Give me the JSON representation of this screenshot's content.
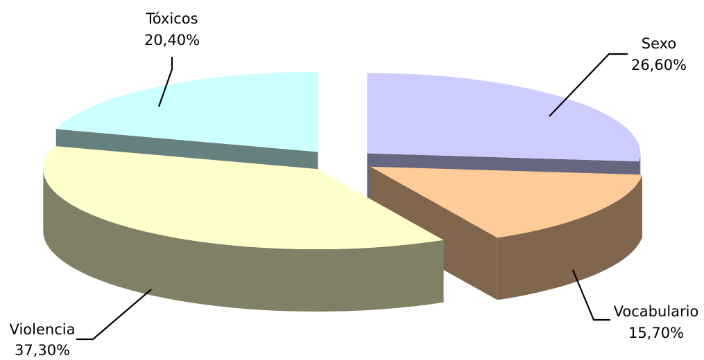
{
  "chart_data": {
    "type": "pie",
    "title": "",
    "style": "3d-exploded",
    "series": [
      {
        "slices": [
          {
            "label": "Sexo",
            "value_label": "26,60%",
            "value": 26.6,
            "color": "#CCCCFF",
            "side_color": "#666680"
          },
          {
            "label": "Vocabulario",
            "value_label": "15,70%",
            "value": 15.7,
            "color": "#FFCC99",
            "side_color": "#80664D"
          },
          {
            "label": "Violencia",
            "value_label": "37,30%",
            "value": 37.3,
            "color": "#FFFFCC",
            "side_color": "#808066"
          },
          {
            "label": "Tóxicos",
            "value_label": "20,40%",
            "value": 20.4,
            "color": "#CCFFFF",
            "side_color": "#668080"
          }
        ]
      }
    ],
    "legend": "none",
    "data_labels": "outside-with-leader-lines"
  }
}
